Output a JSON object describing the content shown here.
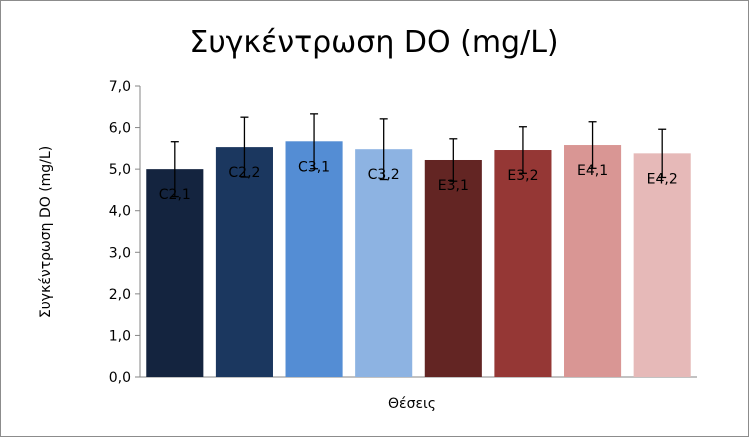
{
  "chart_data": {
    "type": "bar",
    "title": "Συγκέντρωση DO (mg/L)",
    "xlabel": "Θέσεις",
    "ylabel": "Συγκέντρωση DO (mg/L)",
    "ylim": [
      0,
      7
    ],
    "yticks": [
      "0,0",
      "1,0",
      "2,0",
      "3,0",
      "4,0",
      "5,0",
      "6,0",
      "7,0"
    ],
    "categories": [
      "C2,1",
      "C2,2",
      "C3,1",
      "C3,2",
      "E3,1",
      "E3,2",
      "E4,1",
      "E4,2"
    ],
    "values": [
      5.0,
      5.53,
      5.67,
      5.48,
      5.22,
      5.46,
      5.58,
      5.38
    ],
    "error": [
      0.66,
      0.72,
      0.66,
      0.73,
      0.51,
      0.56,
      0.56,
      0.58
    ],
    "colors": [
      "#14243f",
      "#1b375f",
      "#548dd4",
      "#8db3e2",
      "#632523",
      "#953735",
      "#d99694",
      "#e6b9b8"
    ],
    "error_color": "#000000",
    "grid": false,
    "legend": "none"
  }
}
